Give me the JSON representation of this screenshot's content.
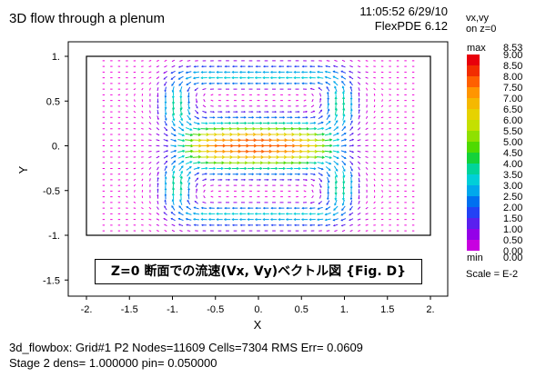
{
  "header": {
    "title": "3D flow through a plenum",
    "timestamp": "11:05:52 6/29/10",
    "version": "FlexPDE 6.12"
  },
  "legend": {
    "heading1": "vx,vy",
    "heading2": "on z=0",
    "max_label": "max",
    "max_value": "8.53",
    "min_label": "min",
    "min_value": "0.00",
    "levels": [
      "9.00",
      "8.50",
      "8.00",
      "7.50",
      "7.00",
      "6.50",
      "6.00",
      "5.50",
      "5.00",
      "4.50",
      "4.00",
      "3.50",
      "3.00",
      "2.50",
      "2.00",
      "1.50",
      "1.00",
      "0.50",
      "0.00"
    ],
    "colors": [
      "#e8000b",
      "#f22d00",
      "#ff6000",
      "#ff9500",
      "#f5b800",
      "#e6d200",
      "#c4e000",
      "#8fe000",
      "#4fda00",
      "#14d23a",
      "#00d49a",
      "#00cfd8",
      "#00a8ec",
      "#0070f0",
      "#2342f5",
      "#5a20ee",
      "#9400e8",
      "#c800e0",
      "#f000dc"
    ],
    "scale": "Scale = E-2"
  },
  "annotation": "Z=0 断面での流速(Vx, Vy)ベクトル図  {Fig. D}",
  "footer": {
    "line1": "3d_flowbox:  Grid#1  P2  Nodes=11609 Cells=7304 RMS Err= 0.0609",
    "line2": "Stage 2  dens=  1.000000  pin=  0.050000"
  },
  "chart_data": {
    "type": "vector_field",
    "xlabel": "X",
    "ylabel": "Y",
    "xlim": [
      -2.0,
      2.0
    ],
    "ylim": [
      -1.75,
      1.0
    ],
    "xticks": [
      "-2.",
      "-1.5",
      "-1.",
      "-0.5",
      "0.",
      "0.5",
      "1.",
      "1.5",
      "2."
    ],
    "yticks": [
      "1.",
      "0.5",
      "0.",
      "-0.5",
      "-1.",
      "-1.5"
    ],
    "domain_box": {
      "x": [
        -2.0,
        2.0
      ],
      "y": [
        -1.0,
        1.0
      ]
    },
    "field_extent": {
      "x": [
        -1.8,
        1.8
      ],
      "y": [
        -0.95,
        0.95
      ]
    },
    "max_speed": 8.53,
    "min_speed": 0.0
  }
}
